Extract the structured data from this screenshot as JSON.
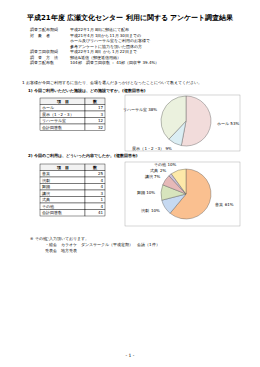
{
  "header": {
    "title": "平成21年度 広瀬文化センター 利用に関する アンケート調査結果"
  },
  "info": [
    {
      "label": "調査票配布期間",
      "text": "平成22年1月 8日に郵送にて配布"
    },
    {
      "label": "対　象　者",
      "text": "平成21年4月 1日から11月 30日までの"
    },
    {
      "text": "ホール及びリハーサル室をご利用のお客様で"
    },
    {
      "text": "参考アンケートに協力を頂いた団体の方"
    },
    {
      "label": "調査票回収期間",
      "text": "平成22年1月 8日 から 1月 22日まで"
    },
    {
      "label": "調　査　方　法",
      "text": "郵送&返信（郵便返信用紙）"
    },
    {
      "label": "調査票配布数",
      "text": "104部　調査票回収数 ： 41部（回収率 39.4%）"
    }
  ],
  "question": "1 お客様が今回ご利用するに当たり、会場を選んだきっかけとなったことについて教えてください。",
  "sections": [
    {
      "heading": "1) 今回ご利用いただいた施設は、どの施設ですか。(複数回答有)",
      "table": {
        "header": [
          "項　目",
          "数"
        ],
        "rows": [
          [
            "ホール",
            17
          ],
          [
            "展示（1・2・3）",
            3
          ],
          [
            "リハーサル室",
            12
          ]
        ],
        "total": [
          "合計回答数",
          32
        ]
      }
    },
    {
      "heading": "2) 今回のご利用は、どういった内容でしたか。(複数回答有)",
      "table": {
        "header": [
          "項　目",
          "数"
        ],
        "rows": [
          [
            "音楽",
            25
          ],
          [
            "演劇",
            4
          ],
          [
            "舞踊",
            4
          ],
          [
            "講演",
            3
          ],
          [
            "式典",
            1
          ],
          [
            "その他",
            4
          ]
        ],
        "total": [
          "合計回答数",
          41
        ]
      }
    }
  ],
  "note": {
    "title": "※ その他",
    "lines": [
      "ご入力頂いております。",
      "・総会　カラオケ　ダンスサークル（平成定期）　会議（1件）",
      "発表会　地方発表"
    ]
  },
  "footer": "- 1 -",
  "chart_data": [
    {
      "type": "pie",
      "categories": [
        "ホール",
        "展示（1・2・3）",
        "リハーサル室"
      ],
      "values": [
        53,
        9,
        38
      ],
      "value_labels": [
        "53%",
        "9%",
        "38%"
      ],
      "colors": [
        "#f2dcdb",
        "#dbeef4",
        "#ebf1de"
      ],
      "data_labels": true
    },
    {
      "type": "pie",
      "categories": [
        "音楽",
        "演劇",
        "舞踊",
        "講演",
        "式典",
        "その他"
      ],
      "values": [
        61,
        10,
        10,
        7,
        2,
        10
      ],
      "value_labels": [
        "61%",
        "10%",
        "10%",
        "7%",
        "2%",
        "10%"
      ],
      "colors": [
        "#fac090",
        "#c6d9f1",
        "#d7e4bd",
        "#e6b9b8",
        "#ccc1da",
        "#fde9a9"
      ],
      "data_labels": true
    }
  ]
}
